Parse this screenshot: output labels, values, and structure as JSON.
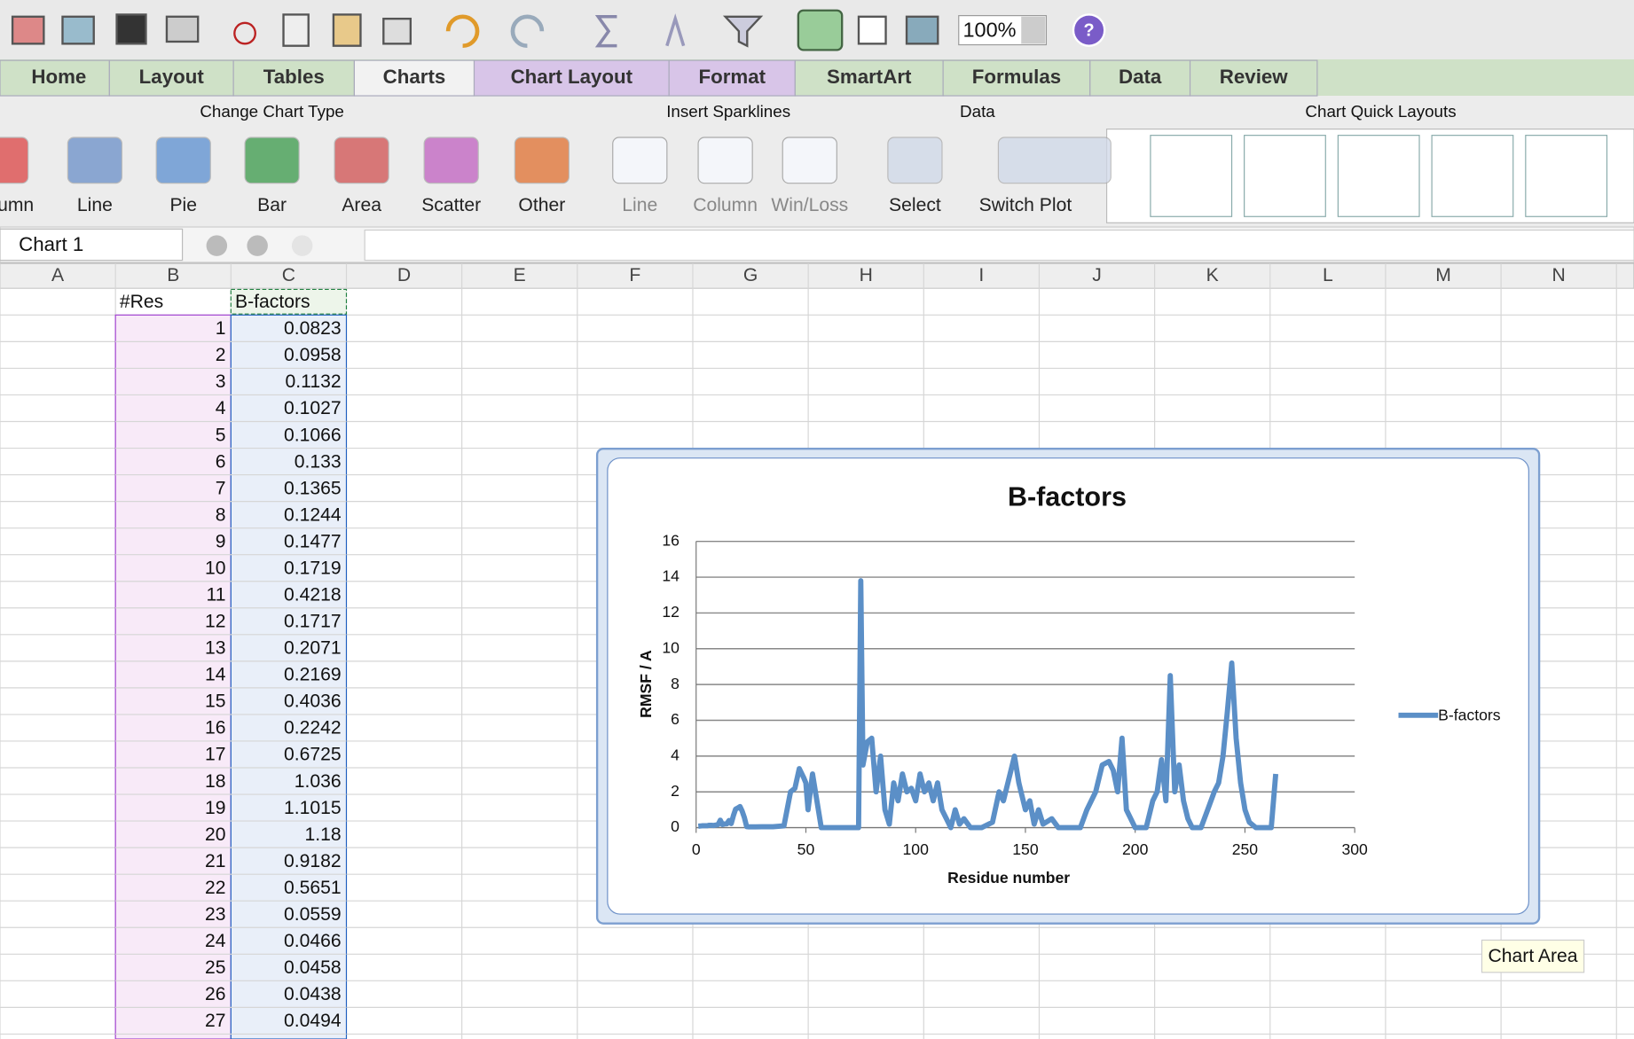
{
  "toolbar": {
    "zoom": "100%"
  },
  "tabs": [
    "Home",
    "Layout",
    "Tables",
    "Charts",
    "Chart Layout",
    "Format",
    "SmartArt",
    "Formulas",
    "Data",
    "Review"
  ],
  "ribbon": {
    "groups": [
      {
        "title": "Change Chart Type",
        "items": [
          "umn",
          "Line",
          "Pie",
          "Bar",
          "Area",
          "Scatter",
          "Other"
        ]
      },
      {
        "title": "Insert Sparklines",
        "items": [
          "Line",
          "Column",
          "Win/Loss"
        ]
      },
      {
        "title": "Data",
        "items": [
          "Select",
          "Switch Plot"
        ]
      },
      {
        "title": "Chart Quick Layouts",
        "items": []
      }
    ]
  },
  "formula_bar": {
    "name_box": "Chart 1"
  },
  "columns": [
    "A",
    "B",
    "C",
    "D",
    "E",
    "F",
    "G",
    "H",
    "I",
    "J",
    "K",
    "L",
    "M",
    "N"
  ],
  "sheet": {
    "headers": [
      "#Res",
      "B-factors"
    ],
    "rows": [
      [
        1,
        0.0823
      ],
      [
        2,
        0.0958
      ],
      [
        3,
        0.1132
      ],
      [
        4,
        0.1027
      ],
      [
        5,
        0.1066
      ],
      [
        6,
        0.133
      ],
      [
        7,
        0.1365
      ],
      [
        8,
        0.1244
      ],
      [
        9,
        0.1477
      ],
      [
        10,
        0.1719
      ],
      [
        11,
        0.4218
      ],
      [
        12,
        0.1717
      ],
      [
        13,
        0.2071
      ],
      [
        14,
        0.2169
      ],
      [
        15,
        0.4036
      ],
      [
        16,
        0.2242
      ],
      [
        17,
        0.6725
      ],
      [
        18,
        1.036
      ],
      [
        19,
        1.1015
      ],
      [
        20,
        1.18
      ],
      [
        21,
        0.9182
      ],
      [
        22,
        0.5651
      ],
      [
        23,
        0.0559
      ],
      [
        24,
        0.0466
      ],
      [
        25,
        0.0458
      ],
      [
        26,
        0.0438
      ],
      [
        27,
        0.0494
      ]
    ]
  },
  "chart_data": {
    "type": "line",
    "title": "B-factors",
    "x_label": "Residue number",
    "y_label": "RMSF / A",
    "x": [
      1,
      2,
      3,
      4,
      5,
      6,
      7,
      8,
      9,
      10,
      11,
      12,
      13,
      14,
      15,
      16,
      17,
      18,
      19,
      20,
      21,
      22,
      23,
      24,
      25,
      26,
      27,
      30,
      35,
      40,
      43,
      45,
      47,
      49,
      50,
      51,
      53,
      55,
      57,
      60,
      65,
      70,
      74,
      75,
      76,
      78,
      80,
      82,
      84,
      86,
      88,
      90,
      92,
      94,
      96,
      98,
      100,
      102,
      104,
      106,
      108,
      110,
      112,
      114,
      116,
      118,
      120,
      122,
      125,
      130,
      135,
      138,
      140,
      143,
      145,
      147,
      150,
      152,
      154,
      156,
      158,
      162,
      165,
      170,
      175,
      178,
      180,
      182,
      185,
      188,
      190,
      192,
      194,
      196,
      198,
      200,
      205,
      208,
      210,
      212,
      214,
      216,
      218,
      220,
      222,
      224,
      226,
      230,
      233,
      236,
      238,
      240,
      242,
      244,
      246,
      248,
      250,
      252,
      255,
      262,
      264
    ],
    "series": [
      {
        "name": "B-factors",
        "color": "#5b8fc7",
        "values": [
          0.0823,
          0.0958,
          0.1132,
          0.1027,
          0.1066,
          0.133,
          0.1365,
          0.1244,
          0.1477,
          0.1719,
          0.4218,
          0.1717,
          0.2071,
          0.2169,
          0.4036,
          0.2242,
          0.6725,
          1.036,
          1.1015,
          1.18,
          0.9182,
          0.5651,
          0.0559,
          0.0466,
          0.0458,
          0.0438,
          0.0494,
          0.05,
          0.05,
          0.1,
          2,
          2.2,
          3.3,
          2.8,
          2.5,
          1,
          3,
          1.5,
          0,
          0,
          0,
          0,
          0,
          13.8,
          3.5,
          4.8,
          5,
          2,
          4,
          1,
          0.2,
          2.5,
          1.5,
          3,
          2,
          2.2,
          1.5,
          3,
          2,
          2.5,
          1.5,
          2.5,
          1,
          0.5,
          0,
          1,
          0.2,
          0.5,
          0,
          0,
          0.3,
          2,
          1.5,
          3,
          4,
          2.5,
          1,
          1.5,
          0.2,
          1,
          0.2,
          0.5,
          0,
          0,
          0,
          1,
          1.5,
          2,
          3.5,
          3.7,
          3.2,
          2,
          5,
          1,
          0.5,
          0,
          0,
          1.5,
          2,
          3.8,
          1.5,
          8.5,
          2,
          3.5,
          1.5,
          0.5,
          0,
          0,
          1,
          2,
          2.5,
          4,
          6.5,
          9.2,
          5,
          2.5,
          1,
          0.3,
          0,
          0,
          3
        ]
      }
    ],
    "xlim": [
      0,
      300
    ],
    "xticks": [
      0,
      50,
      100,
      150,
      200,
      250,
      300
    ],
    "ylim": [
      0,
      16
    ],
    "yticks": [
      0,
      2,
      4,
      6,
      8,
      10,
      12,
      14,
      16
    ],
    "grid": true,
    "legend": "right"
  },
  "tooltip": "Chart Area"
}
